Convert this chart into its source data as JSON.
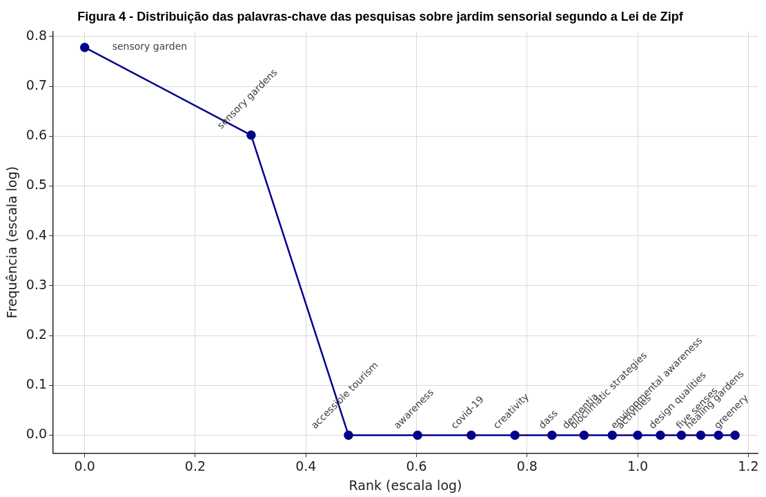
{
  "chart_data": {
    "type": "line",
    "title": "Figura 4 - Distribuição das palavras-chave das pesquisas sobre jardim sensorial segundo a Lei de Zipf",
    "xlabel": "Rank (escala log)",
    "ylabel": "Frequência (escala log)",
    "x": [
      0,
      0.301,
      0.477,
      0.602,
      0.699,
      0.778,
      0.845,
      0.903,
      0.954,
      1.0,
      1.041,
      1.079,
      1.114,
      1.146,
      1.176
    ],
    "series": [
      {
        "color": "#00008b",
        "values": [
          0.778,
          0.602,
          0,
          0,
          0,
          0,
          0,
          0,
          0,
          0,
          0,
          0,
          0,
          0,
          0
        ]
      }
    ],
    "annotations": [
      {
        "text": "sensory garden",
        "x": 0,
        "y": 0.778
      },
      {
        "text": "sensory gardens",
        "x": 0.301,
        "y": 0.602
      },
      {
        "text": "accessible tourism",
        "x": 0.477,
        "y": 0
      },
      {
        "text": "awareness",
        "x": 0.602,
        "y": 0
      },
      {
        "text": "covid-19",
        "x": 0.699,
        "y": 0
      },
      {
        "text": "creativity",
        "x": 0.778,
        "y": 0
      },
      {
        "text": "dass",
        "x": 0.845,
        "y": 0
      },
      {
        "text": "dementia",
        "x": 0.903,
        "y": 0
      },
      {
        "text": "bioclimatic strategies",
        "x": 0.954,
        "y": 0
      },
      {
        "text": "activities",
        "x": 1.0,
        "y": 0
      },
      {
        "text": "environmental awareness",
        "x": 1.041,
        "y": 0
      },
      {
        "text": "design qualities",
        "x": 1.079,
        "y": 0
      },
      {
        "text": "five senses",
        "x": 1.114,
        "y": 0
      },
      {
        "text": "healing gardens",
        "x": 1.146,
        "y": 0
      },
      {
        "text": "greenery",
        "x": 1.176,
        "y": 0
      }
    ],
    "xlim": [
      -0.057,
      1.217
    ],
    "xticks": [
      {
        "value": 0,
        "label": "0.0"
      },
      {
        "value": 0.2,
        "label": "0.2"
      },
      {
        "value": 0.4,
        "label": "0.4"
      },
      {
        "value": 0.6,
        "label": "0.6"
      },
      {
        "value": 0.8,
        "label": "0.8"
      },
      {
        "value": 1.0,
        "label": "1.0"
      },
      {
        "value": 1.2,
        "label": "1.2"
      }
    ],
    "ylim": [
      -0.036,
      0.81
    ],
    "yticks": [
      {
        "value": 0,
        "label": "0.0"
      },
      {
        "value": 0.1,
        "label": "0.1"
      },
      {
        "value": 0.2,
        "label": "0.2"
      },
      {
        "value": 0.3,
        "label": "0.3"
      },
      {
        "value": 0.4,
        "label": "0.4"
      },
      {
        "value": 0.5,
        "label": "0.5"
      },
      {
        "value": 0.6,
        "label": "0.6"
      },
      {
        "value": 0.7,
        "label": "0.7"
      },
      {
        "value": 0.8,
        "label": "0.8"
      }
    ],
    "grid": true,
    "marker": "circle",
    "line_style": "solid",
    "legend": false
  }
}
